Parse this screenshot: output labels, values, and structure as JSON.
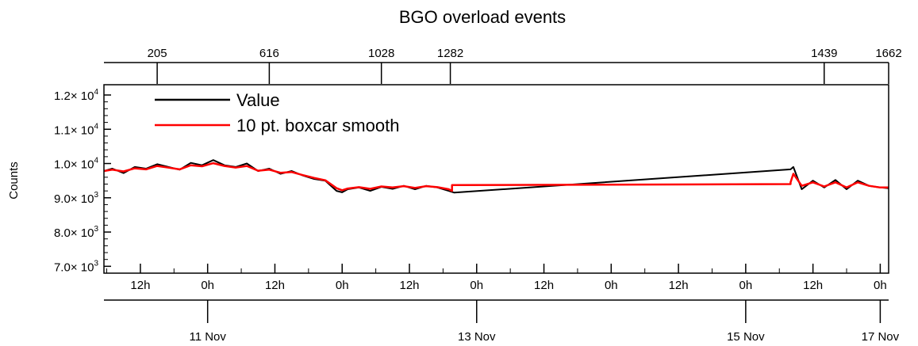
{
  "chart_data": {
    "type": "line",
    "title": "BGO overload events",
    "ylabel": "Counts",
    "xlabel": "",
    "ylim": [
      6800,
      12300
    ],
    "y_ticks": [
      {
        "value": 7000,
        "mantissa": "7.0",
        "exp": "3"
      },
      {
        "value": 8000,
        "mantissa": "8.0",
        "exp": "3"
      },
      {
        "value": 9000,
        "mantissa": "9.0",
        "exp": "3"
      },
      {
        "value": 10000,
        "mantissa": "1.0",
        "exp": "4"
      },
      {
        "value": 11000,
        "mantissa": "1.1",
        "exp": "4"
      },
      {
        "value": 12000,
        "mantissa": "1.2",
        "exp": "4"
      }
    ],
    "y_tick_times": "×",
    "y_tick_base": "10",
    "x_range_hours": [
      -42.5,
      97.5
    ],
    "top_axis_ticks": [
      {
        "label": "205",
        "hour": -33
      },
      {
        "label": "616",
        "hour": -13
      },
      {
        "label": "1028",
        "hour": 7
      },
      {
        "label": "1282",
        "hour": 19.3
      },
      {
        "label": "1439",
        "hour": 86
      },
      {
        "label": "1662",
        "hour": 97.5
      }
    ],
    "hour_ticks": [
      {
        "label": "12h",
        "hour": -36
      },
      {
        "label": "0h",
        "hour": -24
      },
      {
        "label": "12h",
        "hour": -12
      },
      {
        "label": "0h",
        "hour": 0
      },
      {
        "label": "12h",
        "hour": 12
      },
      {
        "label": "0h",
        "hour": 24
      },
      {
        "label": "12h",
        "hour": 36
      },
      {
        "label": "0h",
        "hour": 48
      },
      {
        "label": "12h",
        "hour": 60
      },
      {
        "label": "0h",
        "hour": 72
      },
      {
        "label": "12h",
        "hour": 84
      },
      {
        "label": "0h",
        "hour": 96
      }
    ],
    "date_ticks": [
      {
        "label": "11 Nov",
        "hour": -24
      },
      {
        "label": "13 Nov",
        "hour": 24
      },
      {
        "label": "15 Nov",
        "hour": 72
      },
      {
        "label": "17 Nov",
        "hour": 96
      }
    ],
    "series": [
      {
        "name": "Value",
        "color": "#000000",
        "x": [
          -42.5,
          -41,
          -39,
          -37,
          -35,
          -33,
          -31,
          -29,
          -27,
          -25,
          -23,
          -21,
          -19,
          -17,
          -15,
          -13,
          -11,
          -9,
          -7,
          -5,
          -3,
          -1,
          0,
          1,
          3,
          5,
          7,
          9,
          11,
          13,
          15,
          17,
          19,
          20,
          80,
          80.5,
          82,
          84,
          86,
          88,
          90,
          92,
          94,
          96,
          97.5
        ],
        "y": [
          9780,
          9850,
          9720,
          9900,
          9850,
          9980,
          9900,
          9820,
          10020,
          9950,
          10100,
          9950,
          9900,
          10000,
          9780,
          9850,
          9700,
          9780,
          9650,
          9550,
          9500,
          9200,
          9160,
          9250,
          9300,
          9200,
          9320,
          9260,
          9350,
          9250,
          9350,
          9300,
          9200,
          9150,
          9830,
          9900,
          9250,
          9500,
          9300,
          9520,
          9250,
          9500,
          9350,
          9300,
          9280
        ]
      },
      {
        "name": "10 pt. boxcar smooth",
        "color": "#ff0000",
        "x": [
          -42.5,
          -41,
          -39,
          -37,
          -35,
          -33,
          -31,
          -29,
          -27,
          -25,
          -23,
          -21,
          -19,
          -17,
          -15,
          -13,
          -11,
          -9,
          -7,
          -5,
          -3,
          -1,
          0,
          1,
          3,
          5,
          7,
          9,
          11,
          13,
          15,
          17,
          19,
          19.6,
          19.6,
          80,
          80,
          80.5,
          82,
          84,
          86,
          88,
          90,
          92,
          94,
          96,
          97.5
        ],
        "y": [
          9780,
          9820,
          9770,
          9860,
          9830,
          9930,
          9880,
          9830,
          9950,
          9920,
          10010,
          9930,
          9880,
          9930,
          9790,
          9820,
          9730,
          9750,
          9660,
          9580,
          9510,
          9280,
          9220,
          9270,
          9310,
          9260,
          9330,
          9300,
          9340,
          9290,
          9340,
          9310,
          9250,
          9200,
          9370,
          9400,
          9450,
          9700,
          9350,
          9450,
          9330,
          9450,
          9300,
          9450,
          9350,
          9300,
          9300
        ]
      }
    ],
    "legend_position": "top-left"
  }
}
